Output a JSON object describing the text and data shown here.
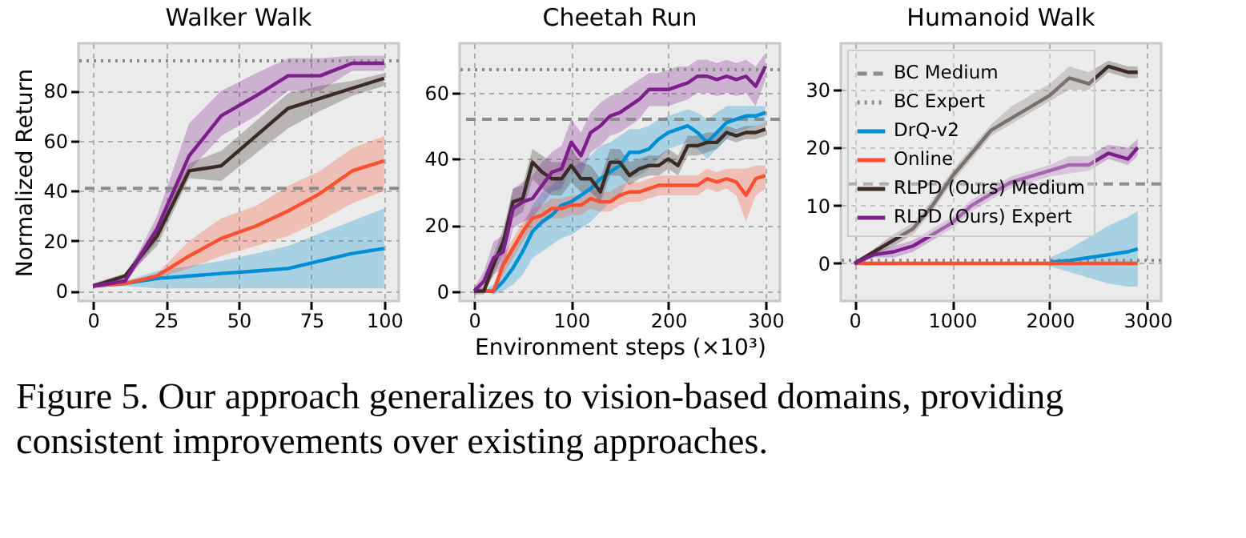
{
  "chart_data": [
    {
      "type": "line",
      "title": "Walker Walk",
      "ylabel": "Normalized Return",
      "xlim": [
        -5,
        105
      ],
      "xticks": [
        0,
        25,
        50,
        75,
        100
      ],
      "ylim": [
        -4,
        99
      ],
      "yticks": [
        0,
        20,
        40,
        60,
        80
      ],
      "grid": true,
      "legend": false,
      "ref_lines": [
        {
          "axis": "y",
          "value": 41,
          "color": "#8c8c8c",
          "line_style": "dashed"
        },
        {
          "axis": "y",
          "value": 92,
          "color": "#8c8c8c",
          "line_style": "dotted"
        }
      ],
      "series": [
        {
          "color": "#008fd5",
          "x": [
            0,
            11,
            22,
            33,
            44,
            56,
            67,
            78,
            89,
            100
          ],
          "values": [
            2,
            3,
            5,
            6,
            7,
            8,
            9,
            12,
            15,
            17
          ],
          "lower": [
            2,
            2,
            1,
            1,
            1,
            1,
            1,
            1,
            1,
            1
          ],
          "upper": [
            2,
            4,
            8,
            10,
            12,
            15,
            18,
            23,
            28,
            33
          ]
        },
        {
          "color": "#fc4f30",
          "x": [
            0,
            11,
            22,
            33,
            44,
            56,
            67,
            78,
            89,
            100
          ],
          "values": [
            2,
            3,
            6,
            14,
            21,
            26,
            32,
            39,
            48,
            52
          ],
          "lower": [
            2,
            3,
            5,
            9,
            14,
            18,
            22,
            28,
            35,
            40
          ],
          "upper": [
            2,
            3,
            7,
            20,
            29,
            34,
            42,
            48,
            57,
            62
          ]
        },
        {
          "color": "#3b2b27",
          "x": [
            0,
            11,
            22,
            33,
            44,
            56,
            67,
            78,
            89,
            100
          ],
          "values": [
            2,
            6,
            22,
            48,
            50,
            62,
            73,
            77,
            81,
            85
          ],
          "lower": [
            1,
            5,
            18,
            45,
            44,
            55,
            65,
            72,
            78,
            82
          ],
          "upper": [
            3,
            7,
            26,
            51,
            56,
            68,
            79,
            82,
            84,
            87
          ]
        },
        {
          "color": "#7e1e8c",
          "x": [
            0,
            11,
            22,
            33,
            44,
            56,
            67,
            78,
            89,
            100
          ],
          "values": [
            2,
            4,
            25,
            54,
            70,
            78,
            86,
            86,
            91,
            91
          ],
          "lower": [
            1,
            3,
            20,
            48,
            62,
            70,
            80,
            80,
            88,
            88
          ],
          "upper": [
            3,
            5,
            30,
            67,
            80,
            87,
            93,
            93,
            94,
            94
          ]
        }
      ]
    },
    {
      "type": "line",
      "title": "Cheetah Run",
      "xlabel": "Environment steps (×10³)",
      "xlim": [
        -15,
        315
      ],
      "xticks": [
        0,
        100,
        200,
        300
      ],
      "ylim": [
        -3,
        75
      ],
      "yticks": [
        0,
        20,
        40,
        60
      ],
      "grid": true,
      "legend": false,
      "annotations": [
        "Figure 5. Our approach generalizes to vision-based domains, providing consistent improvements over existing approaches."
      ],
      "ref_lines": [
        {
          "axis": "y",
          "value": 52,
          "color": "#8c8c8c",
          "line_style": "dashed"
        },
        {
          "axis": "y",
          "value": 67,
          "color": "#8c8c8c",
          "line_style": "dotted"
        }
      ],
      "series": [
        {
          "color": "#008fd5",
          "x": [
            0,
            10,
            20,
            30,
            40,
            50,
            60,
            70,
            80,
            90,
            100,
            110,
            120,
            130,
            140,
            150,
            160,
            170,
            180,
            190,
            200,
            210,
            220,
            230,
            240,
            250,
            260,
            270,
            280,
            290,
            300
          ],
          "values": [
            0,
            0,
            0,
            3,
            7,
            12,
            18,
            21,
            23,
            26,
            27,
            29,
            31,
            34,
            36,
            38,
            42,
            42,
            43,
            46,
            48,
            49,
            50,
            48,
            45,
            48,
            51,
            52,
            53,
            53,
            54
          ],
          "lower": [
            0,
            0,
            -1,
            0,
            2,
            5,
            10,
            12,
            14,
            16,
            17,
            19,
            21,
            24,
            27,
            29,
            34,
            35,
            37,
            40,
            43,
            44,
            45,
            43,
            40,
            43,
            46,
            48,
            49,
            50,
            51
          ],
          "upper": [
            0,
            0,
            2,
            7,
            13,
            19,
            26,
            30,
            32,
            35,
            37,
            39,
            41,
            44,
            45,
            47,
            49,
            49,
            50,
            52,
            53,
            54,
            55,
            54,
            52,
            54,
            56,
            56,
            56,
            56,
            56
          ]
        },
        {
          "color": "#fc4f30",
          "x": [
            0,
            10,
            20,
            30,
            40,
            50,
            60,
            70,
            80,
            90,
            100,
            110,
            120,
            130,
            140,
            150,
            160,
            170,
            180,
            190,
            200,
            210,
            220,
            230,
            240,
            250,
            260,
            270,
            280,
            290,
            300
          ],
          "values": [
            0,
            0,
            0,
            8,
            13,
            18,
            22,
            23,
            25,
            25,
            26,
            26,
            28,
            27,
            27,
            29,
            30,
            30,
            31,
            32,
            32,
            32,
            32,
            32,
            34,
            33,
            34,
            33,
            29,
            34,
            35
          ],
          "lower": [
            0,
            0,
            -1,
            5,
            10,
            15,
            19,
            20,
            22,
            22,
            23,
            23,
            25,
            24,
            24,
            26,
            27,
            27,
            28,
            29,
            29,
            29,
            29,
            29,
            31,
            30,
            31,
            29,
            21,
            29,
            31
          ],
          "upper": [
            0,
            0,
            1,
            11,
            16,
            21,
            25,
            26,
            28,
            28,
            29,
            29,
            31,
            30,
            30,
            32,
            33,
            33,
            34,
            35,
            35,
            35,
            35,
            35,
            37,
            36,
            37,
            37,
            37,
            38,
            38
          ]
        },
        {
          "color": "#3b2b27",
          "x": [
            0,
            10,
            20,
            30,
            40,
            50,
            60,
            70,
            80,
            90,
            100,
            110,
            120,
            130,
            140,
            150,
            160,
            170,
            180,
            190,
            200,
            210,
            220,
            230,
            240,
            250,
            260,
            270,
            280,
            290,
            300
          ],
          "values": [
            0,
            0,
            8,
            15,
            27,
            28,
            39,
            36,
            34,
            34,
            38,
            34,
            34,
            30,
            39,
            39,
            35,
            37,
            38,
            38,
            40,
            38,
            44,
            44,
            45,
            45,
            48,
            47,
            48,
            48,
            49
          ],
          "lower": [
            -1,
            -1,
            5,
            11,
            22,
            24,
            34,
            31,
            29,
            29,
            33,
            30,
            30,
            27,
            35,
            35,
            32,
            34,
            35,
            35,
            37,
            35,
            41,
            41,
            42,
            43,
            46,
            45,
            46,
            46,
            47
          ],
          "upper": [
            1,
            1,
            11,
            19,
            31,
            32,
            43,
            41,
            39,
            39,
            43,
            39,
            38,
            34,
            43,
            43,
            39,
            40,
            41,
            41,
            43,
            41,
            47,
            47,
            48,
            48,
            50,
            49,
            50,
            50,
            51
          ]
        },
        {
          "color": "#7e1e8c",
          "x": [
            0,
            10,
            20,
            30,
            40,
            50,
            60,
            70,
            80,
            90,
            100,
            110,
            120,
            130,
            140,
            150,
            160,
            170,
            180,
            190,
            200,
            210,
            220,
            230,
            240,
            250,
            260,
            270,
            280,
            290,
            300
          ],
          "values": [
            0,
            3,
            10,
            12,
            25,
            27,
            28,
            32,
            36,
            37,
            45,
            41,
            48,
            50,
            53,
            54,
            56,
            58,
            61,
            61,
            61,
            62,
            63,
            65,
            65,
            64,
            65,
            64,
            65,
            62,
            68
          ],
          "lower": [
            -1,
            0,
            5,
            7,
            19,
            21,
            22,
            26,
            30,
            31,
            38,
            35,
            42,
            44,
            47,
            48,
            50,
            52,
            56,
            56,
            56,
            57,
            58,
            60,
            60,
            59,
            60,
            59,
            60,
            56,
            64
          ],
          "upper": [
            1,
            6,
            15,
            17,
            31,
            33,
            35,
            39,
            42,
            44,
            52,
            48,
            54,
            57,
            59,
            60,
            62,
            64,
            66,
            66,
            67,
            68,
            68,
            70,
            70,
            69,
            70,
            69,
            70,
            68,
            72
          ]
        }
      ]
    },
    {
      "type": "line",
      "title": "Humanoid Walk",
      "xlim": [
        -140,
        3140
      ],
      "xticks": [
        0,
        1000,
        2000,
        3000
      ],
      "ylim": [
        -6.5,
        38
      ],
      "yticks": [
        0,
        10,
        20,
        30
      ],
      "grid": true,
      "legend": "top left",
      "ref_lines": [
        {
          "axis": "y",
          "value": 13.7,
          "label": "BC Medium",
          "color": "#8c8c8c",
          "line_style": "dashed"
        },
        {
          "axis": "y",
          "value": 0.5,
          "label": "BC Expert",
          "color": "#8c8c8c",
          "line_style": "dotted"
        }
      ],
      "series": [
        {
          "name": "DrQ-v2",
          "color": "#008fd5",
          "x": [
            2000,
            2200,
            2400,
            2600,
            2800,
            2900
          ],
          "values": [
            0.2,
            0.5,
            1,
            1.5,
            2,
            2.5
          ],
          "lower": [
            -0.5,
            -1.5,
            -2.5,
            -3.5,
            -4,
            -4
          ],
          "upper": [
            1,
            2.5,
            4.5,
            6.5,
            8,
            9
          ]
        },
        {
          "name": "Online",
          "color": "#fc4f30",
          "x": [
            0,
            200,
            400,
            600,
            800,
            1000,
            1200,
            1400,
            1600,
            1800,
            2000,
            2200,
            2400,
            2600,
            2800,
            2900
          ],
          "values": [
            0,
            0,
            0,
            0,
            0,
            0,
            0,
            0,
            0,
            0,
            0,
            0,
            0,
            0,
            0,
            0
          ]
        },
        {
          "name": "RLPD (Ours) Medium",
          "color": "#3b2b27",
          "x": [
            0,
            200,
            400,
            600,
            800,
            1000,
            1200,
            1400,
            1600,
            1800,
            2000,
            2200,
            2400,
            2600,
            2800,
            2900
          ],
          "values": [
            0,
            2,
            4,
            6,
            10,
            15,
            19,
            23,
            25,
            27,
            29,
            32,
            31,
            34,
            33,
            33
          ],
          "lower": [
            0,
            1.5,
            3,
            5,
            9,
            14,
            18,
            22,
            24,
            26,
            28,
            30,
            30,
            33,
            32,
            32
          ],
          "upper": [
            0,
            2.5,
            5,
            7,
            11,
            16,
            20,
            24,
            27,
            29,
            31,
            34,
            33,
            35,
            34,
            34
          ]
        },
        {
          "name": "RLPD (Ours) Expert",
          "color": "#7e1e8c",
          "x": [
            0,
            200,
            400,
            600,
            800,
            1000,
            1200,
            1400,
            1600,
            1800,
            2000,
            2200,
            2400,
            2600,
            2800,
            2900
          ],
          "values": [
            0,
            1.5,
            2,
            3,
            5,
            7,
            10,
            12,
            14,
            15,
            16,
            17,
            17,
            19,
            18,
            20
          ],
          "lower": [
            0,
            1,
            1,
            2,
            4,
            6,
            9,
            11,
            13,
            14,
            15,
            15.5,
            16,
            18,
            17,
            18.5
          ],
          "upper": [
            0,
            2,
            3,
            4,
            6,
            8,
            11,
            13,
            15,
            16,
            17,
            18.5,
            18.5,
            20.5,
            20,
            21.5
          ]
        }
      ]
    }
  ]
}
